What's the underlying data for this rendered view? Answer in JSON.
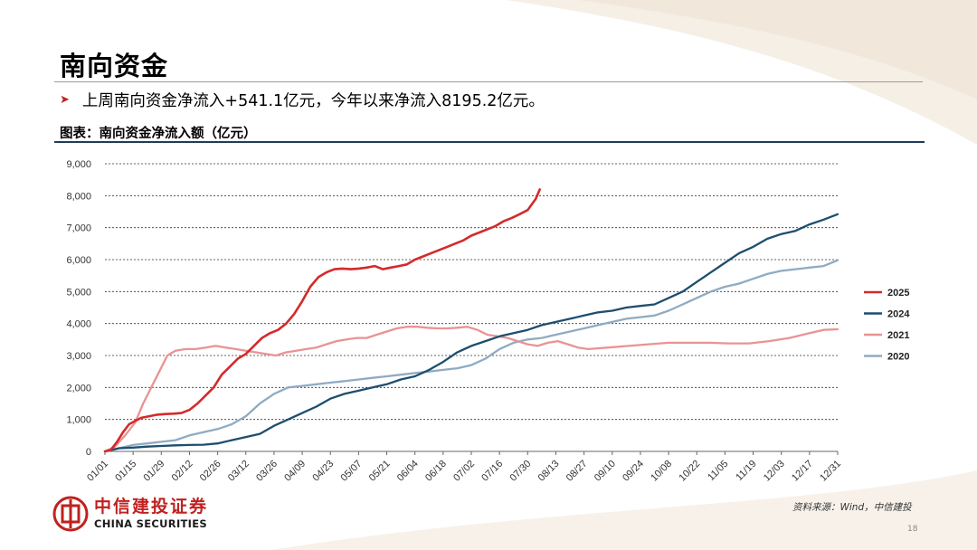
{
  "page": {
    "title": "南向资金",
    "bullet": "上周南向资金净流入+541.1亿元，今年以来净流入8195.2亿元。",
    "chart_caption": "图表：南向资金净流入额（亿元）",
    "source": "资料来源：Wind，中信建投",
    "page_number": "18",
    "logo_cn": "中信建投证券",
    "logo_en": "CHINA SECURITIES",
    "colors": {
      "accent_red": "#c0211f",
      "navy_rule": "#1f3b5a"
    }
  },
  "chart_data": {
    "type": "line",
    "title": "",
    "xlabel": "",
    "ylabel": "",
    "ylim": [
      0,
      9000
    ],
    "y_ticks": [
      "0",
      "1,000",
      "2,000",
      "3,000",
      "4,000",
      "5,000",
      "6,000",
      "7,000",
      "8,000",
      "9,000"
    ],
    "x_ticks": [
      "01/01",
      "01/15",
      "01/29",
      "02/12",
      "02/26",
      "03/12",
      "03/26",
      "04/09",
      "04/23",
      "05/07",
      "05/21",
      "06/04",
      "06/18",
      "07/02",
      "07/16",
      "07/30",
      "08/13",
      "08/27",
      "09/10",
      "09/24",
      "10/08",
      "10/22",
      "11/05",
      "11/19",
      "12/03",
      "12/17",
      "12/31"
    ],
    "x_unit": "day of year (01/01 = 0, 12/31 = 364)",
    "grid": true,
    "grid_style": "dashed horizontal",
    "legend_position": "right",
    "series": [
      {
        "name": "2025",
        "color": "#d42a2a",
        "width": 2.6,
        "points": [
          [
            0,
            0
          ],
          [
            3,
            50
          ],
          [
            6,
            300
          ],
          [
            9,
            600
          ],
          [
            12,
            850
          ],
          [
            15,
            950
          ],
          [
            18,
            1050
          ],
          [
            22,
            1100
          ],
          [
            26,
            1150
          ],
          [
            30,
            1170
          ],
          [
            34,
            1180
          ],
          [
            38,
            1200
          ],
          [
            42,
            1300
          ],
          [
            46,
            1500
          ],
          [
            50,
            1750
          ],
          [
            54,
            2000
          ],
          [
            58,
            2400
          ],
          [
            62,
            2650
          ],
          [
            66,
            2900
          ],
          [
            70,
            3050
          ],
          [
            74,
            3300
          ],
          [
            78,
            3550
          ],
          [
            82,
            3700
          ],
          [
            86,
            3800
          ],
          [
            90,
            4000
          ],
          [
            94,
            4300
          ],
          [
            98,
            4700
          ],
          [
            102,
            5150
          ],
          [
            106,
            5450
          ],
          [
            110,
            5600
          ],
          [
            114,
            5700
          ],
          [
            118,
            5720
          ],
          [
            122,
            5700
          ],
          [
            126,
            5720
          ],
          [
            130,
            5750
          ],
          [
            134,
            5800
          ],
          [
            138,
            5700
          ],
          [
            142,
            5750
          ],
          [
            146,
            5800
          ],
          [
            150,
            5850
          ],
          [
            154,
            6000
          ],
          [
            158,
            6100
          ],
          [
            162,
            6200
          ],
          [
            166,
            6300
          ],
          [
            170,
            6400
          ],
          [
            174,
            6500
          ],
          [
            178,
            6600
          ],
          [
            182,
            6750
          ],
          [
            186,
            6850
          ],
          [
            190,
            6950
          ],
          [
            194,
            7050
          ],
          [
            198,
            7200
          ],
          [
            202,
            7300
          ],
          [
            206,
            7420
          ],
          [
            210,
            7550
          ],
          [
            214,
            7900
          ],
          [
            216,
            8195
          ]
        ]
      },
      {
        "name": "2024",
        "color": "#1e4e6e",
        "width": 2.3,
        "points": [
          [
            0,
            0
          ],
          [
            7,
            100
          ],
          [
            14,
            120
          ],
          [
            21,
            150
          ],
          [
            28,
            170
          ],
          [
            35,
            190
          ],
          [
            42,
            200
          ],
          [
            49,
            210
          ],
          [
            56,
            250
          ],
          [
            63,
            350
          ],
          [
            70,
            450
          ],
          [
            77,
            550
          ],
          [
            84,
            800
          ],
          [
            91,
            1000
          ],
          [
            98,
            1200
          ],
          [
            105,
            1400
          ],
          [
            112,
            1650
          ],
          [
            119,
            1800
          ],
          [
            126,
            1900
          ],
          [
            133,
            2000
          ],
          [
            140,
            2100
          ],
          [
            147,
            2250
          ],
          [
            154,
            2350
          ],
          [
            161,
            2550
          ],
          [
            168,
            2800
          ],
          [
            175,
            3100
          ],
          [
            182,
            3300
          ],
          [
            189,
            3450
          ],
          [
            196,
            3600
          ],
          [
            203,
            3700
          ],
          [
            210,
            3800
          ],
          [
            217,
            3950
          ],
          [
            224,
            4050
          ],
          [
            231,
            4150
          ],
          [
            238,
            4250
          ],
          [
            245,
            4350
          ],
          [
            252,
            4400
          ],
          [
            259,
            4500
          ],
          [
            266,
            4550
          ],
          [
            273,
            4600
          ],
          [
            280,
            4800
          ],
          [
            287,
            5000
          ],
          [
            294,
            5300
          ],
          [
            301,
            5600
          ],
          [
            308,
            5900
          ],
          [
            315,
            6200
          ],
          [
            322,
            6400
          ],
          [
            329,
            6650
          ],
          [
            336,
            6800
          ],
          [
            343,
            6900
          ],
          [
            350,
            7100
          ],
          [
            357,
            7250
          ],
          [
            364,
            7420
          ]
        ]
      },
      {
        "name": "2021",
        "color": "#e99393",
        "width": 2.3,
        "points": [
          [
            0,
            0
          ],
          [
            5,
            150
          ],
          [
            10,
            500
          ],
          [
            15,
            900
          ],
          [
            19,
            1500
          ],
          [
            23,
            2000
          ],
          [
            27,
            2500
          ],
          [
            31,
            3000
          ],
          [
            35,
            3150
          ],
          [
            40,
            3200
          ],
          [
            45,
            3200
          ],
          [
            50,
            3250
          ],
          [
            55,
            3300
          ],
          [
            60,
            3250
          ],
          [
            65,
            3200
          ],
          [
            70,
            3150
          ],
          [
            75,
            3100
          ],
          [
            80,
            3050
          ],
          [
            85,
            3000
          ],
          [
            90,
            3100
          ],
          [
            95,
            3150
          ],
          [
            100,
            3200
          ],
          [
            105,
            3250
          ],
          [
            110,
            3350
          ],
          [
            115,
            3450
          ],
          [
            120,
            3500
          ],
          [
            125,
            3550
          ],
          [
            130,
            3550
          ],
          [
            135,
            3650
          ],
          [
            140,
            3750
          ],
          [
            145,
            3850
          ],
          [
            150,
            3900
          ],
          [
            155,
            3900
          ],
          [
            160,
            3870
          ],
          [
            165,
            3850
          ],
          [
            170,
            3850
          ],
          [
            175,
            3870
          ],
          [
            180,
            3900
          ],
          [
            185,
            3800
          ],
          [
            190,
            3650
          ],
          [
            195,
            3600
          ],
          [
            200,
            3550
          ],
          [
            205,
            3450
          ],
          [
            210,
            3350
          ],
          [
            215,
            3300
          ],
          [
            220,
            3400
          ],
          [
            225,
            3450
          ],
          [
            230,
            3350
          ],
          [
            235,
            3250
          ],
          [
            240,
            3200
          ],
          [
            250,
            3250
          ],
          [
            260,
            3300
          ],
          [
            270,
            3350
          ],
          [
            280,
            3400
          ],
          [
            290,
            3400
          ],
          [
            300,
            3400
          ],
          [
            310,
            3380
          ],
          [
            320,
            3380
          ],
          [
            330,
            3450
          ],
          [
            340,
            3550
          ],
          [
            350,
            3700
          ],
          [
            357,
            3800
          ],
          [
            364,
            3820
          ]
        ]
      },
      {
        "name": "2020",
        "color": "#8fabc2",
        "width": 2.3,
        "points": [
          [
            0,
            0
          ],
          [
            7,
            100
          ],
          [
            14,
            200
          ],
          [
            21,
            250
          ],
          [
            28,
            300
          ],
          [
            35,
            350
          ],
          [
            42,
            500
          ],
          [
            49,
            600
          ],
          [
            56,
            700
          ],
          [
            63,
            850
          ],
          [
            70,
            1100
          ],
          [
            77,
            1500
          ],
          [
            84,
            1800
          ],
          [
            91,
            2000
          ],
          [
            98,
            2050
          ],
          [
            105,
            2100
          ],
          [
            112,
            2150
          ],
          [
            119,
            2200
          ],
          [
            126,
            2250
          ],
          [
            133,
            2300
          ],
          [
            140,
            2350
          ],
          [
            147,
            2400
          ],
          [
            154,
            2450
          ],
          [
            161,
            2500
          ],
          [
            168,
            2550
          ],
          [
            175,
            2600
          ],
          [
            182,
            2700
          ],
          [
            189,
            2900
          ],
          [
            196,
            3200
          ],
          [
            203,
            3400
          ],
          [
            210,
            3500
          ],
          [
            217,
            3550
          ],
          [
            224,
            3650
          ],
          [
            231,
            3750
          ],
          [
            238,
            3850
          ],
          [
            245,
            3950
          ],
          [
            252,
            4050
          ],
          [
            259,
            4150
          ],
          [
            266,
            4200
          ],
          [
            273,
            4250
          ],
          [
            280,
            4400
          ],
          [
            287,
            4600
          ],
          [
            294,
            4800
          ],
          [
            301,
            5000
          ],
          [
            308,
            5150
          ],
          [
            315,
            5250
          ],
          [
            322,
            5400
          ],
          [
            329,
            5550
          ],
          [
            336,
            5650
          ],
          [
            343,
            5700
          ],
          [
            350,
            5750
          ],
          [
            357,
            5800
          ],
          [
            364,
            5980
          ]
        ]
      }
    ]
  }
}
